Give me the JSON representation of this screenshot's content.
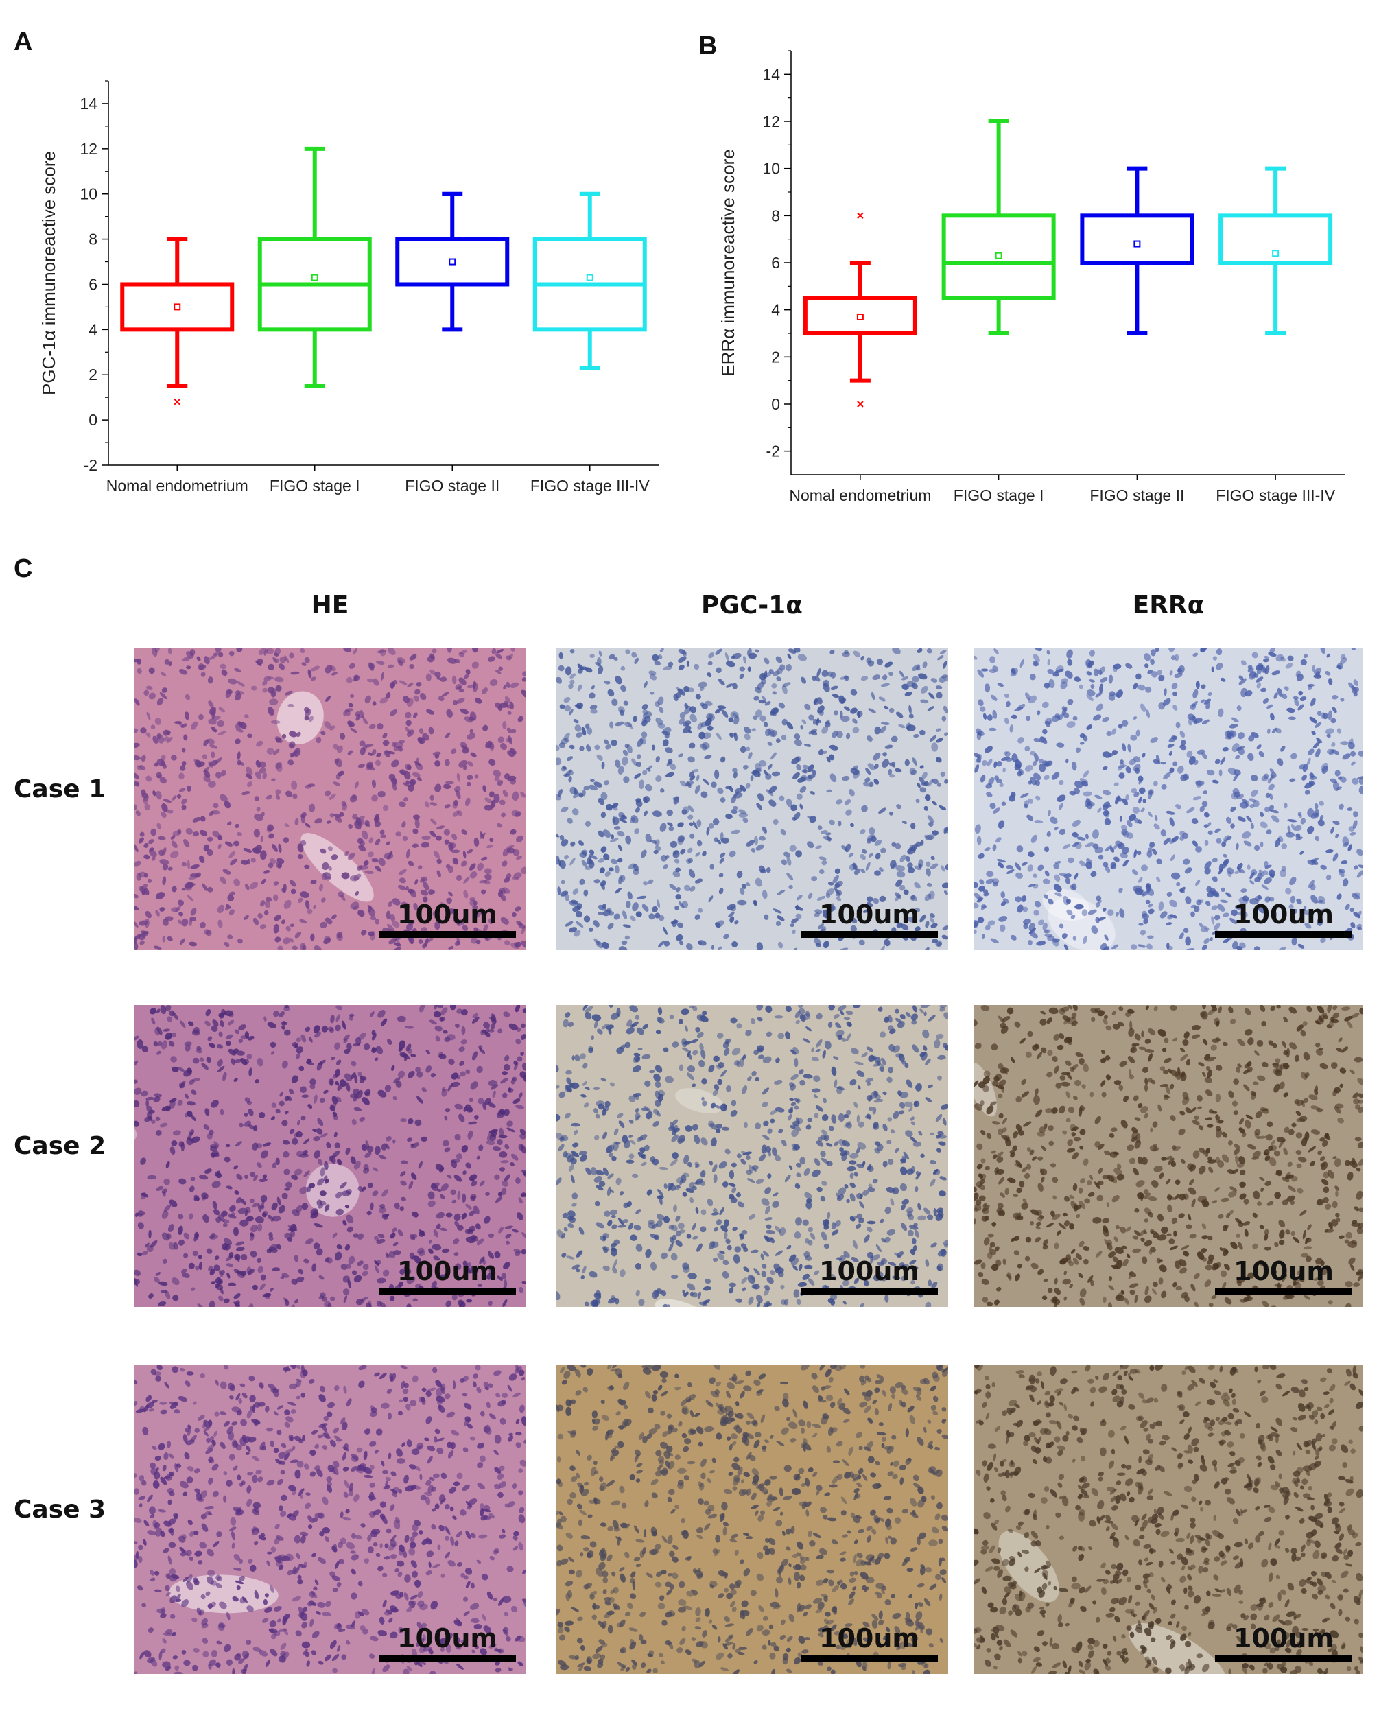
{
  "panels": {
    "A": "A",
    "B": "B",
    "C": "C"
  },
  "chart_data": [
    {
      "id": "A",
      "type": "box",
      "title": "",
      "xlabel": "",
      "ylabel": "PGC-1α immunoreactive score",
      "ylim": [
        -2,
        15
      ],
      "yticks": [
        -2,
        0,
        2,
        4,
        6,
        8,
        10,
        12,
        14
      ],
      "grid": false,
      "categories": [
        "Nomal endometrium",
        "FIGO stage I",
        "FIGO stage II",
        "FIGO stage III-IV"
      ],
      "series": [
        {
          "category": "Nomal endometrium",
          "color": "#ff0000",
          "whisker_low": 1.5,
          "q1": 4,
          "median": 6,
          "q3": 6,
          "whisker_high": 8,
          "mean": 5.0,
          "outliers": [
            0.8
          ]
        },
        {
          "category": "FIGO stage I",
          "color": "#22dd22",
          "whisker_low": 1.5,
          "q1": 4,
          "median": 6,
          "q3": 8,
          "whisker_high": 12,
          "mean": 6.3,
          "outliers": []
        },
        {
          "category": "FIGO stage II",
          "color": "#0000ee",
          "whisker_low": 4,
          "q1": 6,
          "median": 8,
          "q3": 8,
          "whisker_high": 10,
          "mean": 7.0,
          "outliers": []
        },
        {
          "category": "FIGO stage III-IV",
          "color": "#22e6ee",
          "whisker_low": 2.3,
          "q1": 4,
          "median": 6,
          "q3": 8,
          "whisker_high": 10,
          "mean": 6.3,
          "outliers": []
        }
      ]
    },
    {
      "id": "B",
      "type": "box",
      "title": "",
      "xlabel": "",
      "ylabel": "ERRα immunoreactive score",
      "ylim": [
        -3,
        15
      ],
      "yticks": [
        -2,
        0,
        2,
        4,
        6,
        8,
        10,
        12,
        14
      ],
      "grid": false,
      "categories": [
        "Nomal endometrium",
        "FIGO stage I",
        "FIGO stage II",
        "FIGO stage III-IV"
      ],
      "series": [
        {
          "category": "Nomal endometrium",
          "color": "#ff0000",
          "whisker_low": 1,
          "q1": 3,
          "median": 3,
          "q3": 4.5,
          "whisker_high": 6,
          "mean": 3.7,
          "outliers": [
            0,
            8
          ]
        },
        {
          "category": "FIGO stage I",
          "color": "#22dd22",
          "whisker_low": 3,
          "q1": 4.5,
          "median": 6,
          "q3": 8,
          "whisker_high": 12,
          "mean": 6.3,
          "outliers": []
        },
        {
          "category": "FIGO stage II",
          "color": "#0000ee",
          "whisker_low": 3,
          "q1": 6,
          "median": 6,
          "q3": 8,
          "whisker_high": 10,
          "mean": 6.8,
          "outliers": []
        },
        {
          "category": "FIGO stage III-IV",
          "color": "#22e6ee",
          "whisker_low": 3,
          "q1": 6,
          "median": 6,
          "q3": 8,
          "whisker_high": 10,
          "mean": 6.4,
          "outliers": []
        }
      ]
    }
  ],
  "grid": {
    "columns": [
      "HE",
      "PGC-1α",
      "ERRα"
    ],
    "rows": [
      "Case 1",
      "Case 2",
      "Case 3"
    ],
    "scale_label": "100um",
    "tiles": [
      {
        "row": 0,
        "col": 0,
        "stain": "HE",
        "base": "#c98aa8",
        "cell": "#6c3f86"
      },
      {
        "row": 0,
        "col": 1,
        "stain": "PGC-1α",
        "base": "#cfd3dc",
        "cell": "#42569a"
      },
      {
        "row": 0,
        "col": 2,
        "stain": "ERRα",
        "base": "#d4d9e6",
        "cell": "#4a5ea8"
      },
      {
        "row": 1,
        "col": 0,
        "stain": "HE",
        "base": "#b97ea6",
        "cell": "#4f2c78"
      },
      {
        "row": 1,
        "col": 1,
        "stain": "PGC-1α",
        "base": "#c9c2b4",
        "cell": "#40508e"
      },
      {
        "row": 1,
        "col": 2,
        "stain": "ERRα",
        "base": "#a99a84",
        "cell": "#4a3624"
      },
      {
        "row": 2,
        "col": 0,
        "stain": "HE",
        "base": "#c28aaa",
        "cell": "#5a3382"
      },
      {
        "row": 2,
        "col": 1,
        "stain": "PGC-1α",
        "base": "#b89a6c",
        "cell": "#4c4a5a"
      },
      {
        "row": 2,
        "col": 2,
        "stain": "ERRα",
        "base": "#a8977c",
        "cell": "#4a3a2a"
      }
    ]
  }
}
